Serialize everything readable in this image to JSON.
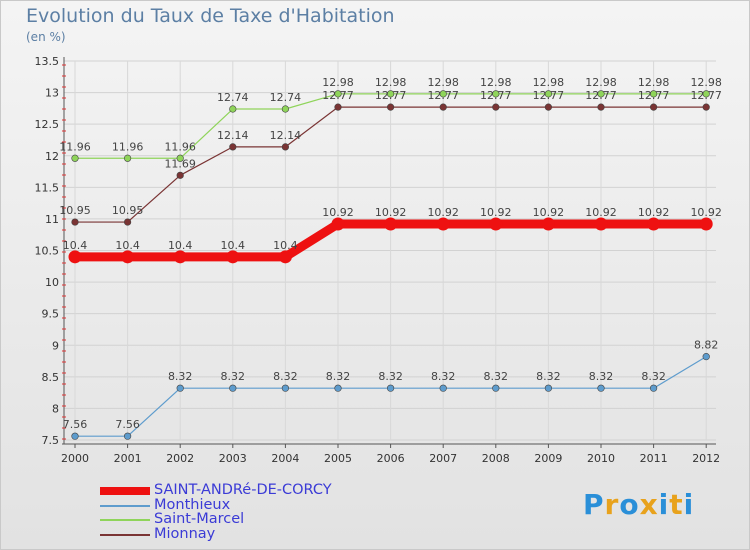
{
  "header": {
    "title": "Evolution du Taux de Taxe d'Habitation",
    "unit": "(en %)"
  },
  "chart_data": {
    "type": "line",
    "title": "Evolution du Taux de Taxe d'Habitation",
    "ylabel": "(en %)",
    "xlabel": "",
    "x": [
      "2000",
      "2001",
      "2002",
      "2003",
      "2004",
      "2005",
      "2006",
      "2007",
      "2008",
      "2009",
      "2010",
      "2011",
      "2012"
    ],
    "ylim": [
      7.5,
      13.5
    ],
    "yticks": [
      7.5,
      8,
      8.5,
      9,
      9.5,
      10,
      10.5,
      11,
      11.5,
      12,
      12.5,
      13,
      13.5
    ],
    "ytick_labels": [
      "7.5",
      "8",
      "8.5",
      "9",
      "9.5",
      "10",
      "10.5",
      "11",
      "11.5",
      "12",
      "12.5",
      "13",
      "13.5"
    ],
    "series": [
      {
        "name": "SAINT-ANDRé-DE-CORCY",
        "color": "#ee1111",
        "values": [
          10.4,
          10.4,
          10.4,
          10.4,
          10.4,
          10.92,
          10.92,
          10.92,
          10.92,
          10.92,
          10.92,
          10.92,
          10.92
        ],
        "labels": [
          "10.4",
          "10.4",
          "10.4",
          "10.4",
          "10.4",
          "10.92",
          "10.92",
          "10.92",
          "10.92",
          "10.92",
          "10.92",
          "10.92",
          "10.92"
        ]
      },
      {
        "name": "Monthieux",
        "color": "#5e9ccd",
        "values": [
          7.56,
          7.56,
          8.32,
          8.32,
          8.32,
          8.32,
          8.32,
          8.32,
          8.32,
          8.32,
          8.32,
          8.32,
          8.82
        ],
        "labels": [
          "7.56",
          "7.56",
          "8.32",
          "8.32",
          "8.32",
          "8.32",
          "8.32",
          "8.32",
          "8.32",
          "8.32",
          "8.32",
          "8.32",
          "8.82"
        ]
      },
      {
        "name": "Saint-Marcel",
        "color": "#8fd45a",
        "values": [
          11.96,
          11.96,
          11.96,
          12.74,
          12.74,
          12.98,
          12.98,
          12.98,
          12.98,
          12.98,
          12.98,
          12.98,
          12.98
        ],
        "labels": [
          "11.96",
          "11.96",
          "11.96",
          "12.74",
          "12.74",
          "12.98",
          "12.98",
          "12.98",
          "12.98",
          "12.98",
          "12.98",
          "12.98",
          "12.98"
        ]
      },
      {
        "name": "Mionnay",
        "color": "#7a3434",
        "values": [
          10.95,
          10.95,
          11.69,
          12.14,
          12.14,
          12.77,
          12.77,
          12.77,
          12.77,
          12.77,
          12.77,
          12.77,
          12.77
        ],
        "labels": [
          "10.95",
          "10.95",
          "11.69",
          "12.14",
          "12.14",
          "12.77",
          "12.77",
          "12.77",
          "12.77",
          "12.77",
          "12.77",
          "12.77",
          "12.77"
        ]
      }
    ],
    "legend": "bottom-left"
  },
  "legend": {
    "items": [
      "SAINT-ANDRé-DE-CORCY",
      "Monthieux",
      "Saint-Marcel",
      "Mionnay"
    ]
  },
  "logo": {
    "text": "Proxiti",
    "letters": [
      "P",
      "r",
      "o",
      "x",
      "i",
      "t",
      "i"
    ],
    "colors": [
      "#2a8fd8",
      "#e8a21c",
      "#2a8fd8",
      "#e8a21c",
      "#2a8fd8",
      "#e8a21c",
      "#2a8fd8"
    ]
  }
}
